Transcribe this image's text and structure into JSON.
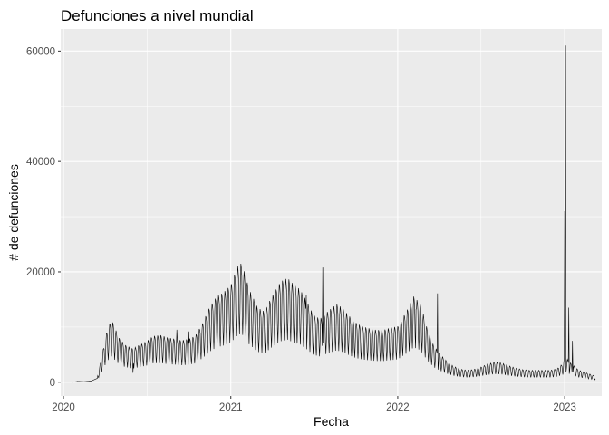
{
  "chart_data": {
    "type": "line",
    "title": "Defunciones a nivel mundial",
    "xlabel": "Fecha",
    "ylabel": "# de defunciones",
    "x_range": [
      "2019-12-26",
      "2023-03-23"
    ],
    "ylim": [
      -2500,
      64000
    ],
    "x_ticks": [
      {
        "date": "2020-01-01",
        "label": "2020"
      },
      {
        "date": "2021-01-01",
        "label": "2021"
      },
      {
        "date": "2022-01-01",
        "label": "2022"
      },
      {
        "date": "2023-01-01",
        "label": "2023"
      }
    ],
    "y_ticks": [
      {
        "value": 0,
        "label": "0"
      },
      {
        "value": 20000,
        "label": "20000"
      },
      {
        "value": 40000,
        "label": "40000"
      },
      {
        "value": 60000,
        "label": "60000"
      }
    ],
    "grid": true,
    "legend": "none",
    "colors": {
      "panel": "#ebebeb",
      "grid": "#ffffff",
      "line": "#000000",
      "tick_text": "#4d4d4d"
    },
    "series": [
      {
        "points": [
          [
            "2020-01-22",
            0
          ],
          [
            "2020-02-01",
            150
          ],
          [
            "2020-02-15",
            100
          ],
          [
            "2020-03-01",
            200
          ],
          [
            "2020-03-15",
            700
          ],
          [
            "2020-03-25",
            3500
          ],
          [
            "2020-04-05",
            6800
          ],
          [
            "2020-04-15",
            8500
          ],
          [
            "2020-05-01",
            6000
          ],
          [
            "2020-05-15",
            5000
          ],
          [
            "2020-06-01",
            4500
          ],
          [
            "2020-06-15",
            5000
          ],
          [
            "2020-07-01",
            5500
          ],
          [
            "2020-07-15",
            6200
          ],
          [
            "2020-08-01",
            6300
          ],
          [
            "2020-08-15",
            6000
          ],
          [
            "2020-09-01",
            5800
          ],
          [
            "2020-09-15",
            5600
          ],
          [
            "2020-10-01",
            5800
          ],
          [
            "2020-10-15",
            6200
          ],
          [
            "2020-11-01",
            8000
          ],
          [
            "2020-11-15",
            10000
          ],
          [
            "2020-12-01",
            11500
          ],
          [
            "2020-12-15",
            12000
          ],
          [
            "2021-01-01",
            13000
          ],
          [
            "2021-01-15",
            15500
          ],
          [
            "2021-01-25",
            16000
          ],
          [
            "2021-02-10",
            12500
          ],
          [
            "2021-03-01",
            10000
          ],
          [
            "2021-03-15",
            9500
          ],
          [
            "2021-04-01",
            11500
          ],
          [
            "2021-04-20",
            13500
          ],
          [
            "2021-05-05",
            14000
          ],
          [
            "2021-05-20",
            13000
          ],
          [
            "2021-06-01",
            12500
          ],
          [
            "2021-06-15",
            11000
          ],
          [
            "2021-07-01",
            9000
          ],
          [
            "2021-07-15",
            8500
          ],
          [
            "2021-08-01",
            9500
          ],
          [
            "2021-08-20",
            10500
          ],
          [
            "2021-09-01",
            10000
          ],
          [
            "2021-09-15",
            9000
          ],
          [
            "2021-10-01",
            8000
          ],
          [
            "2021-10-15",
            7500
          ],
          [
            "2021-11-01",
            7200
          ],
          [
            "2021-11-15",
            7000
          ],
          [
            "2021-12-01",
            7000
          ],
          [
            "2021-12-15",
            7300
          ],
          [
            "2022-01-01",
            7500
          ],
          [
            "2022-01-20",
            9500
          ],
          [
            "2022-02-05",
            11500
          ],
          [
            "2022-02-20",
            10500
          ],
          [
            "2022-03-05",
            7500
          ],
          [
            "2022-03-20",
            5000
          ],
          [
            "2022-04-01",
            4000
          ],
          [
            "2022-04-15",
            3000
          ],
          [
            "2022-05-01",
            2200
          ],
          [
            "2022-05-15",
            1800
          ],
          [
            "2022-06-01",
            1600
          ],
          [
            "2022-06-15",
            1700
          ],
          [
            "2022-07-01",
            2000
          ],
          [
            "2022-07-15",
            2400
          ],
          [
            "2022-08-01",
            2700
          ],
          [
            "2022-08-15",
            2600
          ],
          [
            "2022-09-01",
            2200
          ],
          [
            "2022-09-15",
            1900
          ],
          [
            "2022-10-01",
            1700
          ],
          [
            "2022-10-15",
            1600
          ],
          [
            "2022-11-01",
            1600
          ],
          [
            "2022-11-15",
            1600
          ],
          [
            "2022-12-01",
            1600
          ],
          [
            "2022-12-15",
            1800
          ],
          [
            "2022-12-28",
            2500
          ],
          [
            "2023-01-01",
            3500
          ],
          [
            "2023-01-15",
            2500
          ],
          [
            "2023-02-01",
            1600
          ],
          [
            "2023-02-15",
            1300
          ],
          [
            "2023-03-01",
            1000
          ],
          [
            "2023-03-09",
            800
          ]
        ],
        "spikes": [
          [
            "2020-04-10",
            8800
          ],
          [
            "2020-06-01",
            1700
          ],
          [
            "2020-09-05",
            9500
          ],
          [
            "2020-10-01",
            9200
          ],
          [
            "2021-02-05",
            17500
          ],
          [
            "2021-06-15",
            15800
          ],
          [
            "2021-07-21",
            20800
          ],
          [
            "2022-02-10",
            13200
          ],
          [
            "2022-03-29",
            16100
          ],
          [
            "2023-01-01",
            31000
          ],
          [
            "2023-01-03",
            61000
          ],
          [
            "2023-01-10",
            13500
          ],
          [
            "2023-01-18",
            7500
          ]
        ]
      }
    ]
  }
}
